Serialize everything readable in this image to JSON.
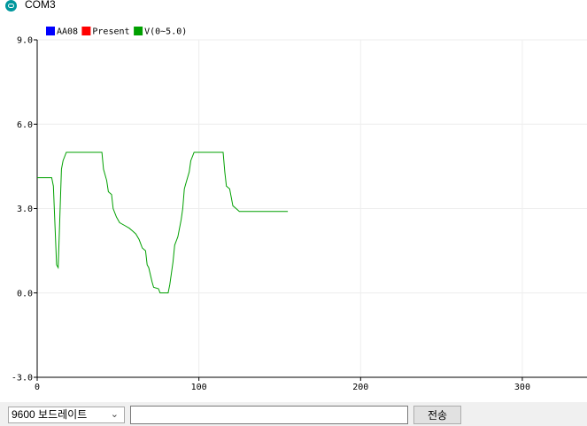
{
  "window": {
    "title": "COM3"
  },
  "chart_data": {
    "type": "line",
    "legend_position": "top-left",
    "grid": true,
    "xlim": [
      0,
      340
    ],
    "ylim": [
      -3.0,
      9.0
    ],
    "x_ticks": [
      0,
      100,
      200,
      300
    ],
    "y_ticks": [
      {
        "value": 9.0,
        "label": "9.0"
      },
      {
        "value": 6.0,
        "label": "6.0"
      },
      {
        "value": 3.0,
        "label": "3.0"
      },
      {
        "value": 0.0,
        "label": "0.0"
      },
      {
        "value": -3.0,
        "label": "-3.0"
      }
    ],
    "series": [
      {
        "name": "AA08",
        "color": "#0000ff",
        "points": []
      },
      {
        "name": "Present",
        "color": "#ff0000",
        "points": []
      },
      {
        "name": "V(0~5.0)",
        "color": "#00a000",
        "points": [
          [
            0,
            4.1
          ],
          [
            9,
            4.1
          ],
          [
            10,
            3.8
          ],
          [
            12,
            1.0
          ],
          [
            13,
            0.9
          ],
          [
            15,
            4.4
          ],
          [
            16,
            4.7
          ],
          [
            18,
            5.0
          ],
          [
            40,
            5.0
          ],
          [
            41,
            4.4
          ],
          [
            43,
            4.0
          ],
          [
            44,
            3.6
          ],
          [
            46,
            3.5
          ],
          [
            47,
            3.0
          ],
          [
            49,
            2.7
          ],
          [
            51,
            2.5
          ],
          [
            54,
            2.4
          ],
          [
            57,
            2.3
          ],
          [
            59,
            2.2
          ],
          [
            61,
            2.1
          ],
          [
            63,
            1.9
          ],
          [
            65,
            1.6
          ],
          [
            67,
            1.5
          ],
          [
            68,
            1.0
          ],
          [
            69,
            0.9
          ],
          [
            71,
            0.4
          ],
          [
            72,
            0.2
          ],
          [
            75,
            0.15
          ],
          [
            76,
            0.0
          ],
          [
            81,
            0.0
          ],
          [
            82,
            0.3
          ],
          [
            84,
            1.1
          ],
          [
            85,
            1.7
          ],
          [
            87,
            2.0
          ],
          [
            89,
            2.6
          ],
          [
            90,
            3.0
          ],
          [
            91,
            3.7
          ],
          [
            92,
            3.9
          ],
          [
            94,
            4.3
          ],
          [
            95,
            4.7
          ],
          [
            97,
            5.0
          ],
          [
            115,
            5.0
          ],
          [
            116,
            4.3
          ],
          [
            117,
            3.8
          ],
          [
            119,
            3.7
          ],
          [
            120,
            3.4
          ],
          [
            121,
            3.1
          ],
          [
            123,
            3.0
          ],
          [
            125,
            2.9
          ],
          [
            155,
            2.9
          ]
        ]
      }
    ]
  },
  "toolbar": {
    "baud_label": "9600 보드레이트",
    "send_input_value": "",
    "send_label": "전송"
  }
}
